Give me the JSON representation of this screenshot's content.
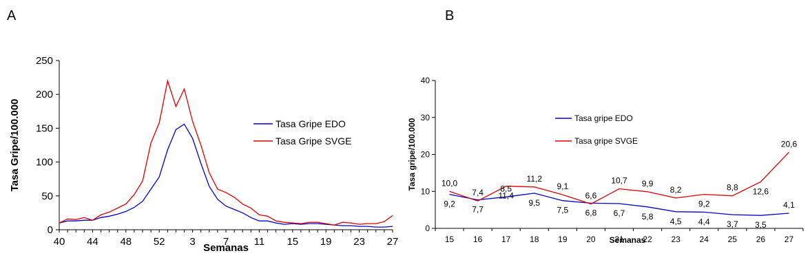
{
  "panels": {
    "a_label": "A",
    "b_label": "B"
  },
  "colors": {
    "edo": "#0000cc",
    "svge": "#dd0000",
    "axis": "#000000"
  },
  "chart_data": [
    {
      "type": "line",
      "title": "",
      "xlabel": "Semanas",
      "ylabel": "Tasa Gripe/100.000",
      "ylim": [
        0,
        250
      ],
      "yticks": [
        "0",
        "50",
        "100",
        "150",
        "200",
        "250"
      ],
      "xtick_labels": [
        "40",
        "44",
        "48",
        "52",
        "3",
        "7",
        "11",
        "15",
        "19",
        "23",
        "27"
      ],
      "x": [
        "40",
        "41",
        "42",
        "43",
        "44",
        "45",
        "46",
        "47",
        "48",
        "49",
        "50",
        "51",
        "52",
        "53",
        "1",
        "2",
        "3",
        "4",
        "5",
        "6",
        "7",
        "8",
        "9",
        "10",
        "11",
        "12",
        "13",
        "14",
        "15",
        "16",
        "17",
        "18",
        "19",
        "20",
        "21",
        "22",
        "23",
        "24",
        "25",
        "26",
        "27"
      ],
      "legend_position": "right",
      "series": [
        {
          "name": "Tasa Gripe EDO",
          "color": "#0000cc",
          "values": [
            10,
            13,
            13,
            14,
            14,
            18,
            20,
            23,
            27,
            33,
            42,
            60,
            78,
            118,
            148,
            156,
            135,
            98,
            64,
            45,
            35,
            30,
            25,
            18,
            13,
            13,
            10,
            8,
            9,
            8,
            9,
            9,
            8,
            7,
            6,
            6,
            5,
            5,
            4,
            4,
            5
          ]
        },
        {
          "name": "Tasa Gripe SVGE",
          "color": "#dd0000",
          "values": [
            10,
            16,
            15,
            18,
            14,
            22,
            26,
            32,
            38,
            52,
            72,
            128,
            158,
            220,
            182,
            208,
            160,
            125,
            84,
            60,
            55,
            48,
            38,
            32,
            22,
            20,
            13,
            11,
            10,
            9,
            11,
            11,
            9,
            7,
            11,
            10,
            8,
            9,
            9,
            12,
            21
          ]
        }
      ]
    },
    {
      "type": "line",
      "title": "",
      "xlabel": "Semanas",
      "ylabel": "Tasa gripe/100.000",
      "ylim": [
        0,
        40
      ],
      "yticks": [
        "0",
        "10",
        "20",
        "30",
        "40"
      ],
      "x": [
        "15",
        "16",
        "17",
        "18",
        "19",
        "20",
        "21",
        "22",
        "23",
        "24",
        "25",
        "26",
        "27"
      ],
      "legend_position": "center",
      "series": [
        {
          "name": "Tasa gripe EDO",
          "color": "#0000cc",
          "values": [
            9.2,
            7.7,
            8.5,
            9.5,
            7.5,
            6.8,
            6.7,
            5.8,
            4.5,
            4.4,
            3.7,
            3.5,
            4.1
          ]
        },
        {
          "name": "Tasa gripe SVGE",
          "color": "#dd0000",
          "values": [
            10.0,
            7.4,
            11.4,
            11.2,
            9.1,
            6.6,
            10.7,
            9.9,
            8.2,
            9.2,
            8.8,
            12.6,
            20.6
          ]
        }
      ],
      "data_labels": [
        {
          "text": "10,0",
          "x": "15",
          "y": 10.0,
          "pos": "above"
        },
        {
          "text": "9,2",
          "x": "15",
          "y": 9.2,
          "pos": "below"
        },
        {
          "text": "7,4",
          "x": "16",
          "y": 7.4,
          "pos": "above"
        },
        {
          "text": "7,7",
          "x": "16",
          "y": 7.7,
          "pos": "below"
        },
        {
          "text": "8,5",
          "x": "17",
          "y": 8.5,
          "pos": "above"
        },
        {
          "text": "11,4",
          "x": "17",
          "y": 11.4,
          "pos": "below"
        },
        {
          "text": "11,2",
          "x": "18",
          "y": 11.2,
          "pos": "above"
        },
        {
          "text": "9,5",
          "x": "18",
          "y": 9.5,
          "pos": "below"
        },
        {
          "text": "9,1",
          "x": "19",
          "y": 9.1,
          "pos": "above"
        },
        {
          "text": "7,5",
          "x": "19",
          "y": 7.5,
          "pos": "below"
        },
        {
          "text": "6,6",
          "x": "20",
          "y": 6.6,
          "pos": "above"
        },
        {
          "text": "6,8",
          "x": "20",
          "y": 6.8,
          "pos": "below"
        },
        {
          "text": "10,7",
          "x": "21",
          "y": 10.7,
          "pos": "above"
        },
        {
          "text": "6,7",
          "x": "21",
          "y": 6.7,
          "pos": "below"
        },
        {
          "text": "9,9",
          "x": "22",
          "y": 9.9,
          "pos": "above"
        },
        {
          "text": "5,8",
          "x": "22",
          "y": 5.8,
          "pos": "below"
        },
        {
          "text": "8,2",
          "x": "23",
          "y": 8.2,
          "pos": "above"
        },
        {
          "text": "4,5",
          "x": "23",
          "y": 4.5,
          "pos": "below"
        },
        {
          "text": "9,2",
          "x": "24",
          "y": 9.2,
          "pos": "below"
        },
        {
          "text": "4,4",
          "x": "24",
          "y": 4.4,
          "pos": "below"
        },
        {
          "text": "8,8",
          "x": "25",
          "y": 8.8,
          "pos": "above"
        },
        {
          "text": "3,7",
          "x": "25",
          "y": 3.7,
          "pos": "below"
        },
        {
          "text": "12,6",
          "x": "26",
          "y": 12.6,
          "pos": "below"
        },
        {
          "text": "3,5",
          "x": "26",
          "y": 3.5,
          "pos": "below"
        },
        {
          "text": "20,6",
          "x": "27",
          "y": 20.6,
          "pos": "above"
        },
        {
          "text": "4,1",
          "x": "27",
          "y": 4.1,
          "pos": "above"
        }
      ]
    }
  ]
}
